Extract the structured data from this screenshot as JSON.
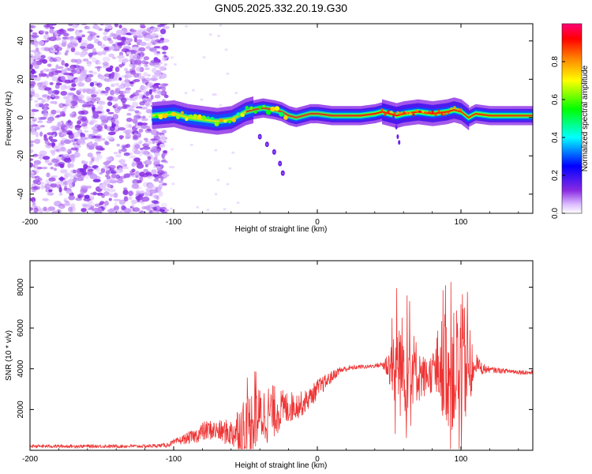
{
  "figure_title": "GN05.2025.332.20.19.G30",
  "chart_data": [
    {
      "type": "heatmap",
      "title": "GN05.2025.332.20.19.G30",
      "xlabel": "Height of straight line (km)",
      "ylabel": "Frequency (Hz)",
      "xlim": [
        -200,
        150
      ],
      "ylim": [
        -50,
        49
      ],
      "xticks": [
        -200,
        -100,
        0,
        100
      ],
      "yticks": [
        -40,
        -20,
        0,
        20,
        40
      ],
      "colorbar": {
        "label": "Normalized spectral amplitude",
        "range": [
          0.0,
          1.0
        ],
        "ticks": [
          "0.0",
          "0.2",
          "0.4",
          "0.6",
          "0.8"
        ],
        "colormap": [
          "#ffffff",
          "#8a2be2",
          "#0000ff",
          "#00ffff",
          "#00ff00",
          "#ffff00",
          "#ff8000",
          "#ff0000",
          "#ff00aa"
        ]
      },
      "noise_region": {
        "x": [
          -200,
          -105
        ],
        "y": [
          -50,
          49
        ],
        "typical_amplitude": 0.15
      },
      "ridge": {
        "name": "dominant frequency",
        "points": [
          [
            -115,
            1
          ],
          [
            -100,
            2
          ],
          [
            -90,
            0
          ],
          [
            -80,
            -1
          ],
          [
            -70,
            -2
          ],
          [
            -60,
            -1
          ],
          [
            -50,
            3
          ],
          [
            -45,
            4
          ],
          [
            -38,
            5
          ],
          [
            -30,
            4
          ],
          [
            -25,
            3
          ],
          [
            -20,
            1
          ],
          [
            -15,
            0
          ],
          [
            -10,
            1
          ],
          [
            -5,
            2
          ],
          [
            0,
            2
          ],
          [
            10,
            1
          ],
          [
            20,
            1
          ],
          [
            30,
            1
          ],
          [
            40,
            2
          ],
          [
            45,
            3
          ],
          [
            50,
            2
          ],
          [
            55,
            1
          ],
          [
            60,
            2
          ],
          [
            70,
            3
          ],
          [
            80,
            2
          ],
          [
            90,
            3
          ],
          [
            95,
            4
          ],
          [
            100,
            3
          ],
          [
            105,
            0
          ],
          [
            110,
            2
          ],
          [
            120,
            1
          ],
          [
            130,
            1
          ],
          [
            150,
            1
          ]
        ],
        "peak_amplitude": 0.95
      },
      "secondary_branch": {
        "points": [
          [
            -40,
            -10
          ],
          [
            -35,
            -14
          ],
          [
            -30,
            -18
          ],
          [
            -26,
            -24
          ],
          [
            -24,
            -29
          ]
        ],
        "amplitude": 0.35
      },
      "spur": {
        "points": [
          [
            53,
            0
          ],
          [
            55,
            -5
          ],
          [
            56,
            -10
          ],
          [
            57,
            -13
          ]
        ],
        "amplitude": 0.3
      }
    },
    {
      "type": "line",
      "title": "",
      "xlabel": "Height of straight line (km)",
      "ylabel": "SNR (10 * v/v)",
      "xlim": [
        -200,
        150
      ],
      "ylim": [
        0,
        9300
      ],
      "xticks": [
        -200,
        -100,
        0,
        100
      ],
      "yticks": [
        2000,
        4000,
        6000,
        8000
      ],
      "color": "#ee3333",
      "series": [
        {
          "name": "SNR",
          "x": [
            -200,
            -180,
            -160,
            -140,
            -120,
            -105,
            -95,
            -90,
            -85,
            -80,
            -75,
            -70,
            -65,
            -60,
            -55,
            -50,
            -45,
            -40,
            -35,
            -30,
            -25,
            -20,
            -15,
            -10,
            -5,
            0,
            5,
            10,
            15,
            20,
            25,
            30,
            35,
            40,
            45,
            50,
            55,
            60,
            65,
            70,
            75,
            80,
            85,
            90,
            95,
            100,
            105,
            110,
            115,
            120,
            130,
            140,
            150
          ],
          "values": [
            200,
            200,
            200,
            200,
            200,
            250,
            500,
            600,
            700,
            900,
            1000,
            950,
            900,
            850,
            1000,
            1200,
            1500,
            1700,
            1800,
            1900,
            2000,
            2100,
            2200,
            2300,
            2600,
            3000,
            3300,
            3600,
            3900,
            4000,
            4050,
            4100,
            4100,
            4150,
            4200,
            4150,
            4200,
            4100,
            4200,
            3800,
            3600,
            3800,
            4200,
            4000,
            3800,
            4500,
            3800,
            4300,
            4000,
            3950,
            3900,
            3850,
            3800
          ],
          "fluctuation_amplitude": [
            80,
            80,
            80,
            80,
            80,
            100,
            200,
            300,
            350,
            500,
            500,
            500,
            600,
            700,
            1300,
            1500,
            1600,
            1400,
            1500,
            1300,
            1000,
            800,
            700,
            600,
            500,
            500,
            400,
            300,
            200,
            150,
            120,
            100,
            100,
            100,
            150,
            900,
            2500,
            2600,
            2000,
            1500,
            1000,
            1000,
            2200,
            2800,
            3000,
            3500,
            2500,
            500,
            300,
            150,
            120,
            120,
            120
          ]
        }
      ]
    }
  ]
}
